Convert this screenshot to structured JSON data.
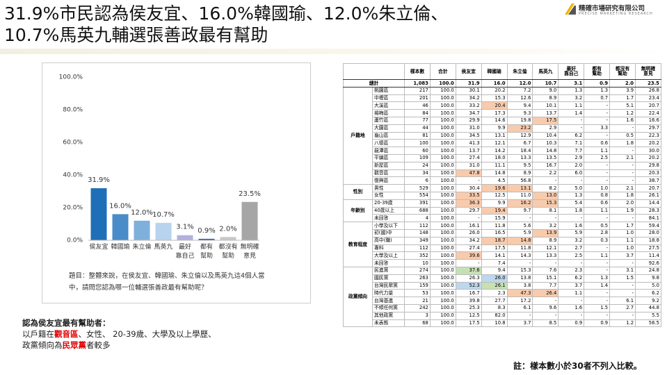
{
  "header": {
    "title_lines": [
      "31.9%市民認為侯友宜、16.0%韓國瑜、12.0%朱立倫、",
      "10.7%馬英九輔選張善政最有幫助"
    ],
    "logo_name": "精確市場研究有限公司",
    "logo_sub": "PRECISE MARKETING RESEARCH"
  },
  "chart_data": {
    "type": "bar",
    "categories": [
      "侯友宜",
      "韓國瑜",
      "朱立倫",
      "馬英九",
      "最好\n靠自己",
      "都有\n幫助",
      "都沒有\n幫助",
      "無明確\n意見"
    ],
    "values": [
      31.9,
      16.0,
      12.0,
      10.7,
      3.1,
      0.9,
      2.0,
      23.5
    ],
    "value_labels": [
      "31.9%",
      "16.0%",
      "12.0%",
      "10.7%",
      "3.1%",
      "0.9%",
      "2.0%",
      "23.5%"
    ],
    "colors": [
      "#1f6fb8",
      "#4a8cc8",
      "#7fb0dc",
      "#b7d3ee",
      "#b4b0e0",
      "#2e5fa3",
      "#c8c8c8",
      "#a6a6a6"
    ],
    "ylim": [
      0,
      100
    ],
    "yticks": [
      {
        "value": 0,
        "label": "0.0%"
      },
      {
        "value": 20,
        "label": "20.0%"
      },
      {
        "value": 40,
        "label": "40.0%"
      },
      {
        "value": 60,
        "label": "60.0%"
      },
      {
        "value": 80,
        "label": "80.0%"
      },
      {
        "value": 100,
        "label": "100.0%"
      }
    ],
    "grid": false,
    "caption": "題目：整體來說，在侯友宜、韓國瑜、朱立倫以及馬英九這4個人當中，請問您認為哪一位輔選張善政最有幫助呢？"
  },
  "summary": {
    "heading": "認為侯友宜最有幫助者：",
    "line1_parts": [
      "以戶籍在",
      "觀音區",
      "、女性、 20-39歲、大學及以上學歷、"
    ],
    "line2_parts": [
      "政黨傾向為",
      "民眾黨",
      "者較多"
    ]
  },
  "table": {
    "headers": [
      "樣本數",
      "合計",
      "侯友宜",
      "韓國瑜",
      "朱立倫",
      "馬英九",
      "最好\n靠自己",
      "都有\n幫助",
      "都沒有\n幫助",
      "無明確\n意見"
    ],
    "total": {
      "label": "總計",
      "cells": [
        "1,083",
        "100.0",
        "31.9",
        "16.0",
        "12.0",
        "10.7",
        "3.1",
        "0.9",
        "2.0",
        "23.5"
      ]
    },
    "groups": [
      {
        "name": "戶籍地",
        "rows": [
          {
            "label": "桃園區",
            "cells": [
              "217",
              "100.0",
              "30.1",
              "20.2",
              "7.2",
              "9.0",
              "1.3",
              "1.3",
              "3.9",
              "26.8"
            ]
          },
          {
            "label": "中壢區",
            "cells": [
              "201",
              "100.0",
              "34.2",
              "15.3",
              "12.6",
              "8.9",
              "3.2",
              "0.7",
              "1.7",
              "23.4"
            ]
          },
          {
            "label": "大溪區",
            "cells": [
              "46",
              "100.0",
              "33.2",
              "20.4",
              "9.4",
              "10.1",
              "1.1",
              "-",
              "5.1",
              "20.7"
            ],
            "highlights": [
              {
                "col": 3,
                "color": "#f8cbad"
              }
            ]
          },
          {
            "label": "楊梅區",
            "cells": [
              "84",
              "100.0",
              "34.7",
              "17.3",
              "9.3",
              "13.7",
              "1.4",
              "-",
              "1.2",
              "22.4"
            ]
          },
          {
            "label": "蘆竹區",
            "cells": [
              "77",
              "100.0",
              "29.9",
              "14.6",
              "19.8",
              "17.5",
              "-",
              "-",
              "1.6",
              "16.6"
            ],
            "highlights": [
              {
                "col": 5,
                "color": "#f8cbad"
              }
            ]
          },
          {
            "label": "大園區",
            "cells": [
              "44",
              "100.0",
              "31.0",
              "9.9",
              "23.2",
              "2.9",
              "-",
              "3.3",
              "-",
              "29.7"
            ],
            "highlights": [
              {
                "col": 4,
                "color": "#f8cbad"
              }
            ]
          },
          {
            "label": "龜山區",
            "cells": [
              "81",
              "100.0",
              "34.5",
              "13.1",
              "12.9",
              "10.4",
              "6.2",
              "-",
              "0.5",
              "22.3"
            ]
          },
          {
            "label": "八德區",
            "cells": [
              "100",
              "100.0",
              "41.3",
              "12.1",
              "6.7",
              "10.3",
              "7.1",
              "0.6",
              "1.8",
              "20.2"
            ]
          },
          {
            "label": "龍潭區",
            "cells": [
              "60",
              "100.0",
              "13.7",
              "14.2",
              "18.4",
              "14.8",
              "7.7",
              "1.1",
              "-",
              "30.0"
            ]
          },
          {
            "label": "平鎮區",
            "cells": [
              "109",
              "100.0",
              "27.4",
              "18.0",
              "13.3",
              "13.5",
              "2.9",
              "2.5",
              "2.1",
              "20.2"
            ]
          },
          {
            "label": "新屋區",
            "cells": [
              "24",
              "100.0",
              "31.0",
              "11.1",
              "9.5",
              "16.7",
              "2.0",
              "-",
              "-",
              "29.8"
            ]
          },
          {
            "label": "觀音區",
            "cells": [
              "34",
              "100.0",
              "47.8",
              "14.8",
              "8.9",
              "2.2",
              "6.0",
              "-",
              "-",
              "20.3"
            ],
            "highlights": [
              {
                "col": 2,
                "color": "#f8cbad"
              }
            ]
          },
          {
            "label": "復興區",
            "cells": [
              "6",
              "100.0",
              "-",
              "4.5",
              "56.8",
              "-",
              "-",
              "-",
              "-",
              "38.7"
            ]
          }
        ]
      },
      {
        "name": "性別",
        "rows": [
          {
            "label": "男性",
            "cells": [
              "529",
              "100.0",
              "30.4",
              "19.6",
              "13.1",
              "8.2",
              "5.0",
              "1.0",
              "2.1",
              "20.7"
            ],
            "highlights": [
              {
                "col": 3,
                "color": "#f8cbad"
              },
              {
                "col": 4,
                "color": "#f8cbad"
              }
            ]
          },
          {
            "label": "女性",
            "cells": [
              "554",
              "100.0",
              "33.5",
              "12.5",
              "11.0",
              "13.0",
              "1.3",
              "0.8",
              "1.8",
              "26.1"
            ],
            "highlights": [
              {
                "col": 2,
                "color": "#f8cbad"
              },
              {
                "col": 5,
                "color": "#f8cbad"
              }
            ]
          }
        ]
      },
      {
        "name": "年齡別",
        "rows": [
          {
            "label": "20-39歲",
            "cells": [
              "391",
              "100.0",
              "36.3",
              "9.9",
              "16.2",
              "15.3",
              "5.4",
              "0.6",
              "2.0",
              "14.4"
            ],
            "highlights": [
              {
                "col": 2,
                "color": "#f8cbad"
              },
              {
                "col": 4,
                "color": "#f8cbad"
              },
              {
                "col": 5,
                "color": "#f8cbad"
              }
            ]
          },
          {
            "label": "40歲以上",
            "cells": [
              "688",
              "100.0",
              "29.7",
              "19.4",
              "9.7",
              "8.1",
              "1.8",
              "1.1",
              "1.9",
              "28.3"
            ],
            "highlights": [
              {
                "col": 3,
                "color": "#f8cbad"
              }
            ]
          },
          {
            "label": "未回答",
            "cells": [
              "4",
              "100.0",
              "-",
              "15.9",
              "-",
              "-",
              "-",
              "-",
              "-",
              "84.1"
            ]
          }
        ]
      },
      {
        "name": "教育程度",
        "rows": [
          {
            "label": "小學及以下",
            "cells": [
              "112",
              "100.0",
              "16.1",
              "11.8",
              "5.6",
              "3.2",
              "1.6",
              "0.5",
              "1.7",
              "59.4"
            ]
          },
          {
            "label": "初(國)中",
            "cells": [
              "148",
              "100.0",
              "26.0",
              "16.5",
              "5.9",
              "13.9",
              "5.9",
              "2.8",
              "1.0",
              "28.0"
            ],
            "highlights": [
              {
                "col": 5,
                "color": "#f8cbad"
              }
            ]
          },
          {
            "label": "高中(職)",
            "cells": [
              "349",
              "100.0",
              "34.2",
              "18.7",
              "14.8",
              "8.9",
              "3.2",
              "0.3",
              "1.1",
              "18.8"
            ],
            "highlights": [
              {
                "col": 3,
                "color": "#f8cbad"
              },
              {
                "col": 4,
                "color": "#f8cbad"
              }
            ]
          },
          {
            "label": "專科",
            "cells": [
              "112",
              "100.0",
              "27.4",
              "17.5",
              "11.8",
              "12.1",
              "2.7",
              "-",
              "1.0",
              "27.5"
            ]
          },
          {
            "label": "大學及以上",
            "cells": [
              "352",
              "100.0",
              "39.6",
              "14.1",
              "14.3",
              "13.3",
              "2.5",
              "1.1",
              "3.7",
              "11.4"
            ],
            "highlights": [
              {
                "col": 2,
                "color": "#f8cbad"
              }
            ]
          },
          {
            "label": "未回答",
            "cells": [
              "10",
              "100.0",
              "-",
              "7.4",
              "-",
              "-",
              "-",
              "-",
              "-",
              "92.6"
            ]
          }
        ]
      },
      {
        "name": "政黨傾向",
        "rows": [
          {
            "label": "民進黨",
            "cells": [
              "274",
              "100.0",
              "37.6",
              "9.4",
              "15.3",
              "7.6",
              "2.3",
              "-",
              "3.1",
              "24.8"
            ],
            "highlights": [
              {
                "col": 2,
                "color": "#c6e0b4"
              }
            ]
          },
          {
            "label": "國民黨",
            "cells": [
              "263",
              "100.0",
              "26.3",
              "26.0",
              "13.8",
              "15.1",
              "6.2",
              "1.3",
              "1.5",
              "9.8"
            ],
            "highlights": [
              {
                "col": 3,
                "color": "#bdd7ee"
              }
            ]
          },
          {
            "label": "台灣民眾黨",
            "cells": [
              "159",
              "100.0",
              "52.3",
              "26.1",
              "3.8",
              "7.7",
              "3.7",
              "1.4",
              "-",
              "5.0"
            ],
            "highlights": [
              {
                "col": 2,
                "color": "#bdd7ee"
              },
              {
                "col": 3,
                "color": "#c6e0b4"
              }
            ]
          },
          {
            "label": "時代力量",
            "cells": [
              "53",
              "100.0",
              "16.7",
              "2.3",
              "47.3",
              "26.4",
              "1.1",
              "-",
              "-",
              "6.2"
            ],
            "highlights": [
              {
                "col": 4,
                "color": "#f8cbad"
              },
              {
                "col": 5,
                "color": "#f8cbad"
              }
            ]
          },
          {
            "label": "台灣基進",
            "cells": [
              "21",
              "100.0",
              "39.8",
              "27.7",
              "17.2",
              "-",
              "-",
              "-",
              "6.1",
              "9.2"
            ]
          },
          {
            "label": "不傾任何黨",
            "cells": [
              "242",
              "100.0",
              "25.3",
              "8.3",
              "6.1",
              "9.6",
              "1.6",
              "1.5",
              "2.7",
              "44.8"
            ]
          },
          {
            "label": "其他政黨",
            "cells": [
              "3",
              "100.0",
              "12.5",
              "82.0",
              "-",
              "-",
              "-",
              "-",
              "-",
              "5.5"
            ]
          },
          {
            "label": "未表態",
            "cells": [
              "68",
              "100.0",
              "17.5",
              "10.8",
              "3.7",
              "8.5",
              "0.9",
              "0.9",
              "1.2",
              "56.5"
            ]
          }
        ]
      }
    ]
  },
  "footer": {
    "note": "註：樣本數小於30者不列入比較。"
  }
}
